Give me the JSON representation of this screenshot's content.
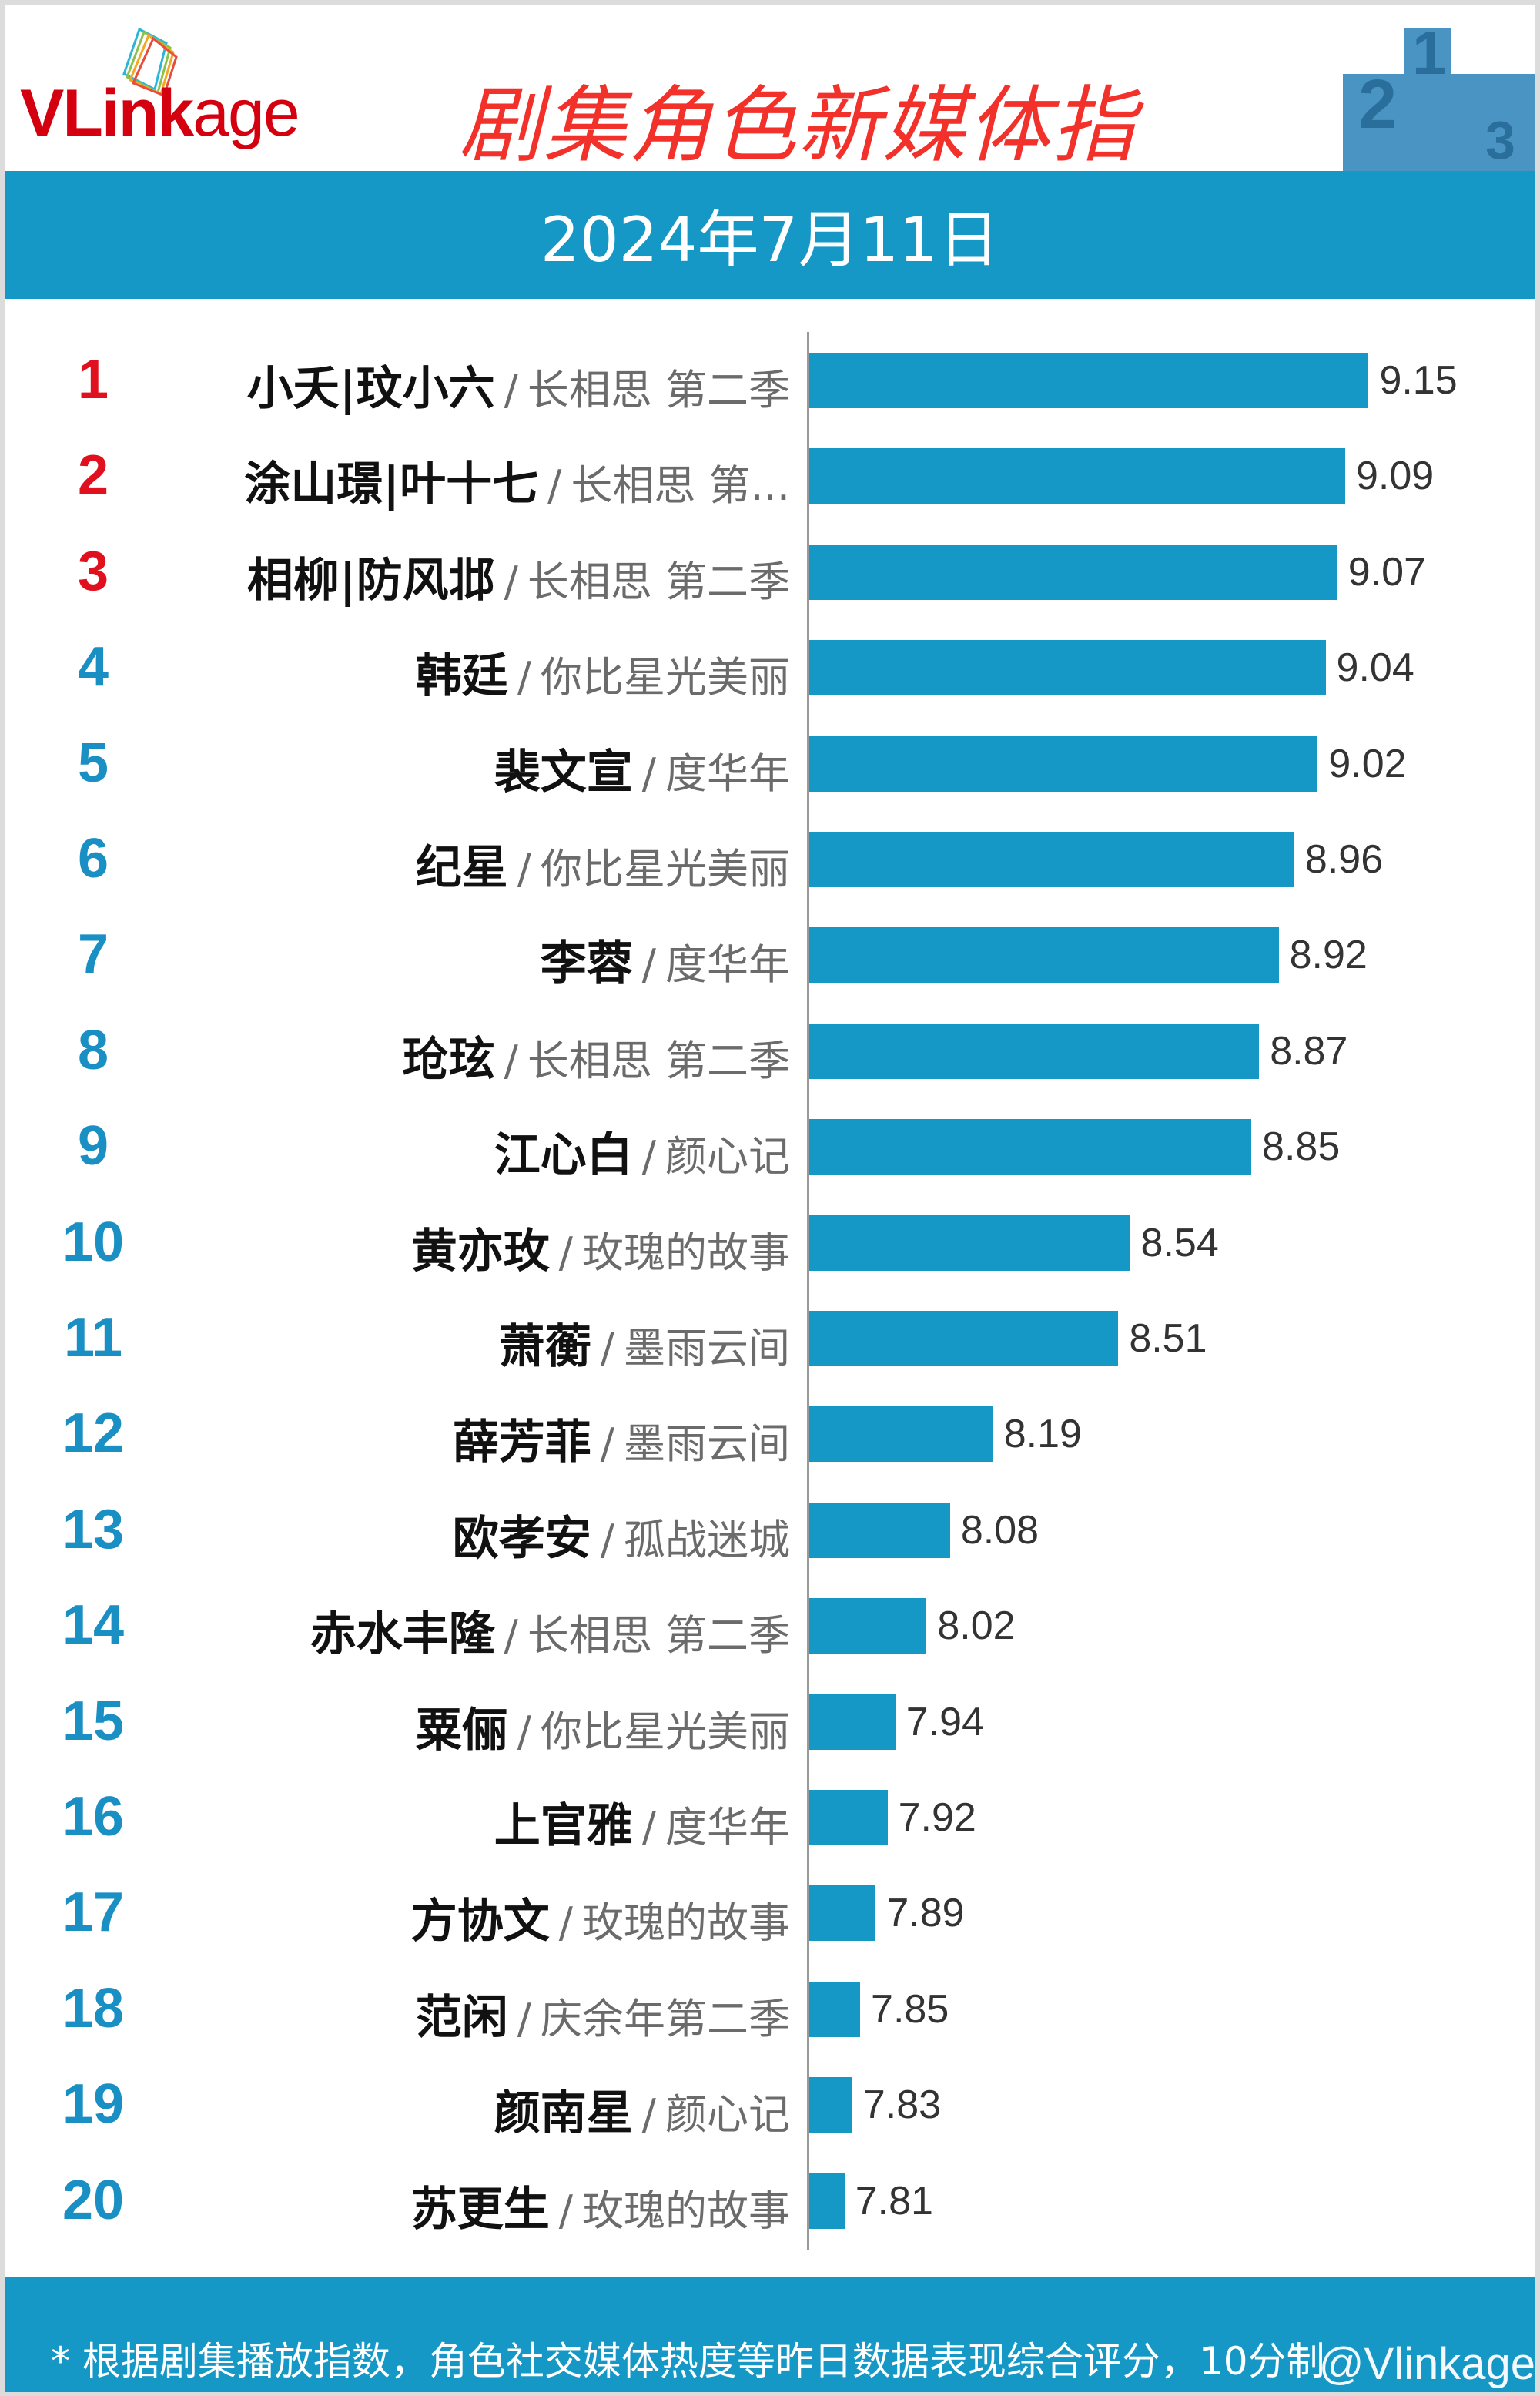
{
  "logo": {
    "text_bold": "VLink",
    "text_light": "age"
  },
  "title": "剧集角色新媒体指",
  "date": "2024年7月11日",
  "colors": {
    "accent": "#1598c6",
    "top3_rank": "#e0101e",
    "rank": "#1a8fc4",
    "title": "#f2312a"
  },
  "chart_data": {
    "type": "bar",
    "orientation": "horizontal",
    "axis_min": 7.72,
    "categories": [
      {
        "rank": "1",
        "name": "小夭|玟小六",
        "show": "长相思 第二季"
      },
      {
        "rank": "2",
        "name": "涂山璟|叶十七",
        "show": "长相思 第..."
      },
      {
        "rank": "3",
        "name": "相柳|防风邶",
        "show": "长相思 第二季"
      },
      {
        "rank": "4",
        "name": "韩廷",
        "show": "你比星光美丽"
      },
      {
        "rank": "5",
        "name": "裴文宣",
        "show": "度华年"
      },
      {
        "rank": "6",
        "name": "纪星",
        "show": "你比星光美丽"
      },
      {
        "rank": "7",
        "name": "李蓉",
        "show": "度华年"
      },
      {
        "rank": "8",
        "name": "玱玹",
        "show": "长相思 第二季"
      },
      {
        "rank": "9",
        "name": "江心白",
        "show": "颜心记"
      },
      {
        "rank": "10",
        "name": "黄亦玫",
        "show": "玫瑰的故事"
      },
      {
        "rank": "11",
        "name": "萧蘅",
        "show": "墨雨云间"
      },
      {
        "rank": "12",
        "name": "薛芳菲",
        "show": "墨雨云间"
      },
      {
        "rank": "13",
        "name": "欧孝安",
        "show": "孤战迷城"
      },
      {
        "rank": "14",
        "name": "赤水丰隆",
        "show": "长相思 第二季"
      },
      {
        "rank": "15",
        "name": "粟俪",
        "show": "你比星光美丽"
      },
      {
        "rank": "16",
        "name": "上官雅",
        "show": "度华年"
      },
      {
        "rank": "17",
        "name": "方协文",
        "show": "玫瑰的故事"
      },
      {
        "rank": "18",
        "name": "范闲",
        "show": "庆余年第二季"
      },
      {
        "rank": "19",
        "name": "颜南星",
        "show": "颜心记"
      },
      {
        "rank": "20",
        "name": "苏更生",
        "show": "玫瑰的故事"
      }
    ],
    "values": [
      "9.15",
      "9.09",
      "9.07",
      "9.04",
      "9.02",
      "8.96",
      "8.92",
      "8.87",
      "8.85",
      "8.54",
      "8.51",
      "8.19",
      "8.08",
      "8.02",
      "7.94",
      "7.92",
      "7.89",
      "7.85",
      "7.83",
      "7.81"
    ],
    "separator": "/"
  },
  "footer": {
    "note": "* 根据剧集播放指数，角色社交媒体热度等昨日数据表现综合评分，10分制",
    "watermark": "@Vlinkage"
  }
}
